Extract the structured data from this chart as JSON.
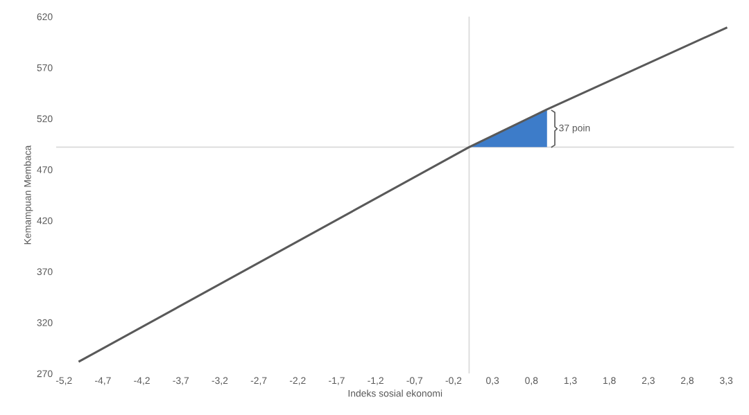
{
  "chart_data": {
    "type": "line",
    "xlabel": "Indeks sosial ekonomi",
    "ylabel": "Kemampuan Membaca",
    "series": [
      {
        "color": "#595959",
        "x": [
          -5.0,
          0,
          1.0,
          3.3
        ],
        "values": [
          282,
          492,
          529,
          609
        ]
      },
      {
        "type": "area",
        "color": "#3d7cc9",
        "x": [
          0,
          1.0
        ],
        "values": [
          492,
          529
        ]
      }
    ],
    "xlim": [
      -5.3,
      3.4
    ],
    "ylim": [
      270,
      620
    ],
    "xticks": [
      {
        "value": -5.2,
        "label": "-5,2"
      },
      {
        "value": -4.7,
        "label": "-4,7"
      },
      {
        "value": -4.2,
        "label": "-4,2"
      },
      {
        "value": -3.7,
        "label": "-3,7"
      },
      {
        "value": -3.2,
        "label": "-3,2"
      },
      {
        "value": -2.7,
        "label": "-2,7"
      },
      {
        "value": -2.2,
        "label": "-2,2"
      },
      {
        "value": -1.7,
        "label": "-1,7"
      },
      {
        "value": -1.2,
        "label": "-1,2"
      },
      {
        "value": -0.7,
        "label": "-0,7"
      },
      {
        "value": -0.2,
        "label": "-0,2"
      },
      {
        "value": 0.3,
        "label": "0,3"
      },
      {
        "value": 0.8,
        "label": "0,8"
      },
      {
        "value": 1.3,
        "label": "1,3"
      },
      {
        "value": 1.8,
        "label": "1,8"
      },
      {
        "value": 2.3,
        "label": "2,3"
      },
      {
        "value": 2.8,
        "label": "2,8"
      },
      {
        "value": 3.3,
        "label": "3,3"
      }
    ],
    "yticks": [
      270,
      320,
      370,
      420,
      470,
      520,
      570,
      620
    ],
    "ref_lines": [
      {
        "axis": "y",
        "value": 492,
        "color": "#d9d9d9"
      },
      {
        "axis": "x",
        "value": 0,
        "color": "#d9d9d9"
      }
    ],
    "annotations": [
      {
        "text": "37 poin",
        "x": 1.0,
        "y": 510
      }
    ],
    "grid": false
  }
}
